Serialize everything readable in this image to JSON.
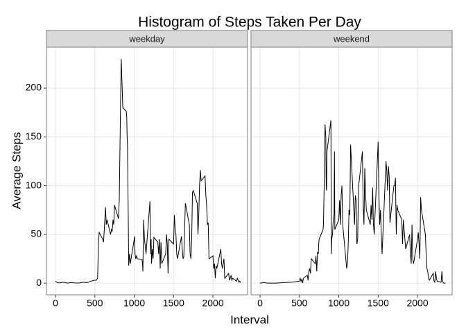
{
  "chart_data": {
    "type": "line",
    "title": "Histogram of Steps Taken Per Day",
    "x_label": "Interval",
    "y_label": "Average Steps",
    "xlim": [
      -115,
      2440
    ],
    "ylim": [
      -12,
      242
    ],
    "xticks": [
      0,
      500,
      1000,
      1500,
      2000
    ],
    "yticks": [
      0,
      50,
      100,
      150,
      200
    ],
    "grid": true,
    "color": "#000000",
    "panels": [
      {
        "name": "weekday",
        "x": [
          0,
          25,
          50,
          100,
          150,
          200,
          250,
          300,
          350,
          400,
          450,
          500,
          520,
          535,
          545,
          555,
          600,
          610,
          620,
          635,
          645,
          655,
          700,
          710,
          720,
          730,
          740,
          750,
          800,
          810,
          825,
          835,
          845,
          855,
          900,
          905,
          910,
          915,
          920,
          925,
          930,
          940,
          950,
          1000,
          1005,
          1010,
          1020,
          1030,
          1040,
          1100,
          1105,
          1110,
          1115,
          1120,
          1130,
          1140,
          1150,
          1200,
          1205,
          1210,
          1215,
          1220,
          1230,
          1240,
          1250,
          1300,
          1310,
          1320,
          1330,
          1340,
          1350,
          1400,
          1410,
          1420,
          1430,
          1440,
          1500,
          1510,
          1520,
          1530,
          1540,
          1550,
          1600,
          1610,
          1620,
          1630,
          1640,
          1650,
          1700,
          1710,
          1720,
          1730,
          1740,
          1750,
          1800,
          1810,
          1820,
          1830,
          1840,
          1850,
          1900,
          1910,
          1920,
          1930,
          1940,
          1950,
          2000,
          2010,
          2020,
          2030,
          2040,
          2050,
          2100,
          2110,
          2120,
          2130,
          2140,
          2150,
          2200,
          2210,
          2220,
          2230,
          2240,
          2250,
          2300,
          2310,
          2320,
          2330,
          2340,
          2355
        ],
        "values": [
          2,
          0.5,
          0.2,
          1,
          0,
          0.5,
          0.2,
          0.1,
          1,
          0.5,
          2,
          3,
          3,
          5,
          40,
          52,
          45,
          42,
          55,
          78,
          60,
          65,
          50,
          55,
          53,
          65,
          60,
          80,
          66,
          85,
          175,
          230,
          205,
          180,
          176,
          170,
          150,
          140,
          100,
          60,
          18,
          30,
          20,
          45,
          48,
          30,
          25,
          28,
          25,
          24,
          20,
          12,
          40,
          65,
          45,
          38,
          30,
          84,
          40,
          30,
          45,
          20,
          35,
          25,
          47,
          42,
          30,
          45,
          15,
          42,
          20,
          30,
          50,
          40,
          10,
          45,
          40,
          70,
          55,
          50,
          30,
          25,
          48,
          35,
          25,
          27,
          55,
          82,
          60,
          30,
          25,
          45,
          93,
          95,
          82,
          50,
          70,
          100,
          116,
          105,
          110,
          90,
          80,
          60,
          62,
          25,
          28,
          15,
          20,
          5,
          18,
          15,
          35,
          20,
          15,
          20,
          25,
          5,
          10,
          3,
          5,
          8,
          3,
          5,
          2,
          5,
          3,
          1,
          2,
          0.5
        ]
      },
      {
        "name": "weekend",
        "x": [
          0,
          50,
          100,
          200,
          300,
          400,
          500,
          510,
          520,
          530,
          540,
          550,
          600,
          610,
          620,
          630,
          640,
          650,
          700,
          710,
          720,
          730,
          740,
          745,
          750,
          800,
          805,
          810,
          820,
          825,
          835,
          840,
          845,
          850,
          900,
          905,
          910,
          920,
          930,
          940,
          945,
          950,
          1000,
          1010,
          1020,
          1030,
          1040,
          1050,
          1100,
          1110,
          1120,
          1130,
          1140,
          1150,
          1200,
          1210,
          1220,
          1230,
          1240,
          1250,
          1300,
          1310,
          1320,
          1330,
          1340,
          1350,
          1400,
          1410,
          1420,
          1430,
          1440,
          1450,
          1500,
          1510,
          1520,
          1530,
          1540,
          1550,
          1600,
          1610,
          1620,
          1630,
          1640,
          1650,
          1700,
          1710,
          1720,
          1730,
          1740,
          1750,
          1800,
          1810,
          1820,
          1830,
          1840,
          1850,
          1900,
          1910,
          1920,
          1930,
          1940,
          1950,
          2000,
          2010,
          2020,
          2030,
          2040,
          2050,
          2100,
          2110,
          2120,
          2130,
          2140,
          2150,
          2200,
          2210,
          2220,
          2230,
          2240,
          2250,
          2300,
          2310,
          2320,
          2330,
          2355
        ],
        "values": [
          0,
          0.5,
          0,
          0,
          0.5,
          1,
          2,
          5,
          2,
          4,
          0,
          5,
          8,
          3,
          12,
          15,
          10,
          25,
          20,
          28,
          12,
          32,
          30,
          40,
          45,
          55,
          60,
          80,
          125,
          163,
          150,
          100,
          95,
          135,
          167,
          30,
          45,
          50,
          65,
          70,
          135,
          55,
          65,
          85,
          60,
          90,
          100,
          60,
          15,
          20,
          40,
          75,
          70,
          142,
          60,
          90,
          85,
          40,
          45,
          98,
          135,
          80,
          60,
          118,
          92,
          75,
          60,
          80,
          65,
          98,
          60,
          50,
          145,
          90,
          60,
          75,
          50,
          30,
          125,
          115,
          95,
          120,
          110,
          62,
          100,
          100,
          108,
          50,
          80,
          75,
          65,
          40,
          65,
          55,
          45,
          35,
          50,
          30,
          20,
          60,
          25,
          20,
          45,
          52,
          40,
          25,
          88,
          75,
          50,
          30,
          15,
          12,
          5,
          3,
          10,
          2,
          1,
          12,
          5,
          2,
          1,
          12,
          2,
          0,
          0
        ]
      }
    ]
  }
}
